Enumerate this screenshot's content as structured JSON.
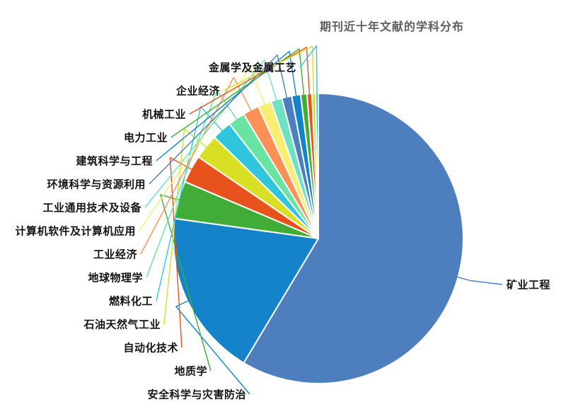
{
  "chart_data": {
    "type": "pie",
    "title": "期刊近十年文献的学科分布",
    "legend_position": "none",
    "start_angle_deg": 0,
    "direction": "clockwise",
    "unit": "percent",
    "slices": [
      {
        "label": "矿业工程",
        "value_pct": 58.6,
        "color": "#4d7ebd"
      },
      {
        "label": "安全科学与灾害防治",
        "value_pct": 18.6,
        "color": "#1583c9"
      },
      {
        "label": "地质学",
        "value_pct": 4.2,
        "color": "#41ad37"
      },
      {
        "label": "自动化技术",
        "value_pct": 3.1,
        "color": "#e8521c"
      },
      {
        "label": "石油天然气工业",
        "value_pct": 2.8,
        "color": "#d8df25"
      },
      {
        "label": "燃料化工",
        "value_pct": 2.2,
        "color": "#2fc6dd"
      },
      {
        "label": "地球物理学",
        "value_pct": 1.9,
        "color": "#68e3a1"
      },
      {
        "label": "工业经济",
        "value_pct": 1.8,
        "color": "#fb9156"
      },
      {
        "label": "计算机软件及计算机应用",
        "value_pct": 1.5,
        "color": "#f8ee74"
      },
      {
        "label": "工业通用技术及设备",
        "value_pct": 1.25,
        "color": "#6fe2c1"
      },
      {
        "label": "环境科学与资源利用",
        "value_pct": 1.1,
        "color": "#4d7ebd"
      },
      {
        "label": "建筑科学与工程",
        "value_pct": 1.0,
        "color": "#1583c9"
      },
      {
        "label": "电力工业",
        "value_pct": 0.7,
        "color": "#41ad37"
      },
      {
        "label": "机械工业",
        "value_pct": 0.55,
        "color": "#e8521c"
      },
      {
        "label": "企业经济",
        "value_pct": 0.4,
        "color": "#d8df25"
      },
      {
        "label": "金属学及金属工艺",
        "value_pct": 0.3,
        "color": "#2fc6dd"
      }
    ]
  }
}
